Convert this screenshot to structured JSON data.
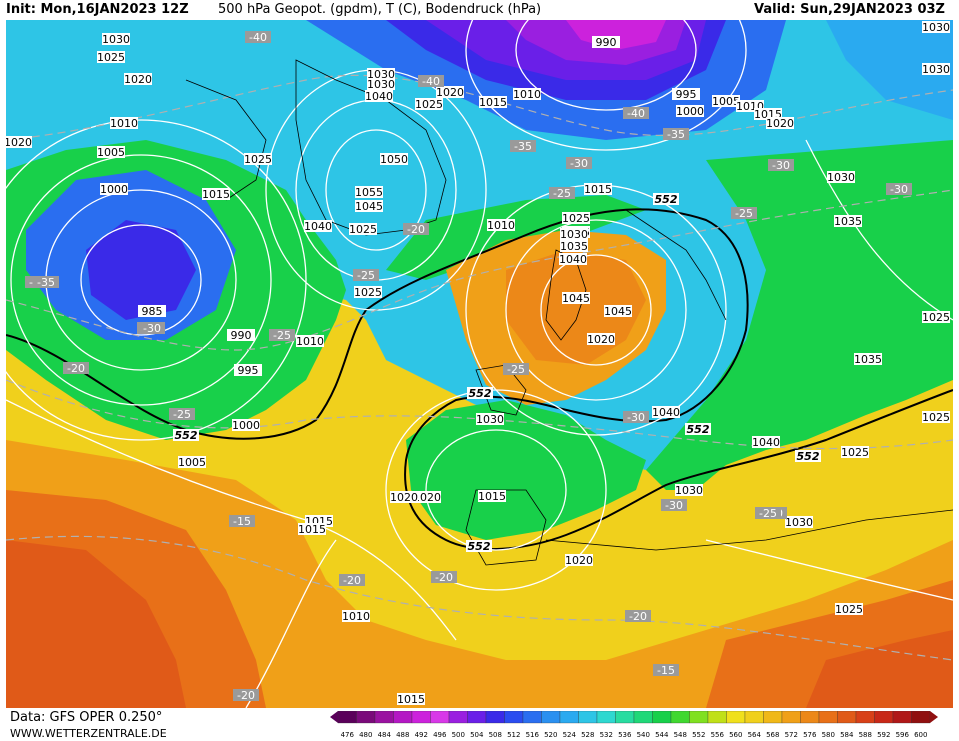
{
  "header": {
    "init": "Init: Mon,16JAN2023 12Z",
    "title": "500 hPa Geopot. (gpdm), T (C), Bodendruck (hPa)",
    "valid": "Valid: Sun,29JAN2023 03Z"
  },
  "footer": {
    "data_source": "Data: GFS OPER 0.250°",
    "website": "WWW.WETTERZENTRALE.DE"
  },
  "colors": {
    "sea_light": "#2ec5e6",
    "deep_blue": "#1f5fe0",
    "purple": "#9a1fe0",
    "green": "#18d04a",
    "yellow": "#f0d01c",
    "orange": "#f0a018",
    "red_orange": "#e05a18",
    "isobar": "#ffffff",
    "isotherm": "#b0b0b0",
    "line_552": "#000000"
  },
  "isobar_labels": [
    "1030",
    "1025",
    "1020",
    "1010",
    "1005",
    "1000",
    "1015",
    "1025",
    "1030",
    "1040",
    "1020",
    "1025",
    "1015",
    "1010",
    "990",
    "995",
    "1000",
    "1005",
    "1010",
    "1015",
    "1020",
    "1030",
    "1030",
    "1050",
    "1055",
    "1045",
    "1025",
    "1040",
    "1010",
    "1015",
    "1025",
    "1035",
    "1040",
    "1045",
    "1045",
    "1035",
    "1025",
    "1030",
    "990",
    "995",
    "985",
    "1010",
    "1000",
    "1005",
    "1015",
    "1020",
    "1025",
    "1030",
    "1040",
    "1035",
    "1030",
    "1025",
    "1020",
    "1020",
    "1015",
    "1010",
    "1025",
    "1015",
    "1030",
    "1020",
    "1025",
    "1015",
    "1030",
    "1040",
    "1030",
    "1020",
    "1025"
  ],
  "temperature_labels": [
    "-40",
    "-40",
    "-40",
    "-35",
    "-35",
    "-30",
    "-30",
    "-30",
    "-25",
    "-25",
    "-25",
    "-30",
    "-30",
    "-35",
    "-30",
    "-25",
    "-20",
    "-25",
    "-25",
    "-20",
    "-30",
    "-30",
    "-30",
    "-25",
    "-15",
    "-20",
    "-20",
    "-20",
    "-15",
    "-20"
  ],
  "contour_552_label": "552",
  "color_scale": {
    "ticks": [
      "476",
      "480",
      "484",
      "488",
      "492",
      "496",
      "500",
      "504",
      "508",
      "512",
      "516",
      "520",
      "524",
      "528",
      "532",
      "536",
      "540",
      "544",
      "548",
      "552",
      "556",
      "560",
      "564",
      "568",
      "572",
      "576",
      "580",
      "584",
      "588",
      "592",
      "596",
      "600"
    ],
    "colors": [
      "#5a005a",
      "#7a0a7a",
      "#9a12a0",
      "#b418c4",
      "#cc22dc",
      "#d838e8",
      "#9a1fe0",
      "#6a1fe8",
      "#3a2ae8",
      "#2a4cf0",
      "#2a6ef0",
      "#2a90f0",
      "#2aaaf0",
      "#2ec5e6",
      "#2ed8d0",
      "#28dca0",
      "#20d878",
      "#18d04a",
      "#40d830",
      "#80e020",
      "#c0e018",
      "#f0e01c",
      "#f0d01c",
      "#f0b818",
      "#f0a018",
      "#ec8818",
      "#e87018",
      "#e05a18",
      "#d84018",
      "#c82818",
      "#b01818",
      "#901010"
    ]
  }
}
